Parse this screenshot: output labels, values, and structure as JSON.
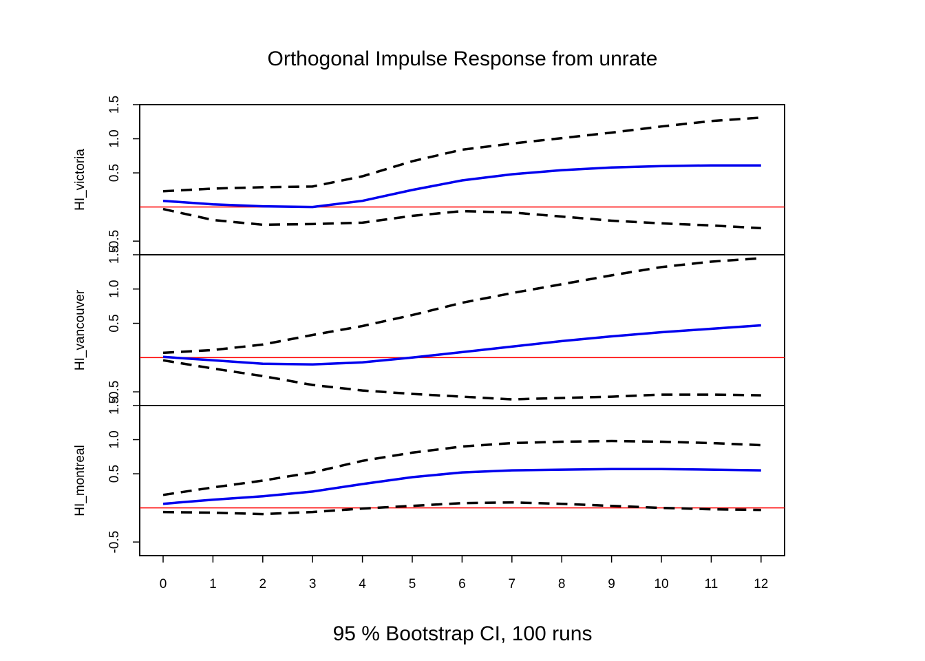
{
  "chart_data": {
    "type": "line",
    "title": "Orthogonal Impulse Response from unrate",
    "xlabel": "95 % Bootstrap CI,  100 runs",
    "x": [
      0,
      1,
      2,
      3,
      4,
      5,
      6,
      7,
      8,
      9,
      10,
      11,
      12
    ],
    "x_tick_labels": [
      "0",
      "1",
      "2",
      "3",
      "4",
      "5",
      "6",
      "7",
      "8",
      "9",
      "10",
      "11",
      "12"
    ],
    "xlim": [
      0,
      12
    ],
    "colors": {
      "response": "#0000ee",
      "ci": "#000000",
      "zero_line": "#ff0000"
    },
    "panels": [
      {
        "ylabel": "HI_victoria",
        "ylim": [
          -0.7,
          1.5
        ],
        "y_tick_labels": [
          "-0.5",
          "0.5",
          "1.0",
          "1.5"
        ],
        "y_tick_values": [
          -0.5,
          0.5,
          1.0,
          1.5
        ],
        "series": [
          {
            "role": "response",
            "values": [
              0.09,
              0.04,
              0.01,
              0.0,
              0.09,
              0.25,
              0.39,
              0.48,
              0.54,
              0.58,
              0.6,
              0.61,
              0.61
            ]
          },
          {
            "role": "upper",
            "values": [
              0.23,
              0.27,
              0.29,
              0.3,
              0.45,
              0.67,
              0.84,
              0.93,
              1.01,
              1.09,
              1.18,
              1.26,
              1.31
            ]
          },
          {
            "role": "lower",
            "values": [
              -0.03,
              -0.19,
              -0.26,
              -0.25,
              -0.23,
              -0.13,
              -0.06,
              -0.08,
              -0.14,
              -0.2,
              -0.24,
              -0.27,
              -0.31
            ]
          }
        ]
      },
      {
        "ylabel": "HI_vancouver",
        "ylim": [
          -0.7,
          1.5
        ],
        "y_tick_labels": [
          "-0.5",
          "0.5",
          "1.0",
          "1.5"
        ],
        "y_tick_values": [
          -0.5,
          0.5,
          1.0,
          1.5
        ],
        "series": [
          {
            "role": "response",
            "values": [
              0.01,
              -0.04,
              -0.09,
              -0.1,
              -0.07,
              0.0,
              0.08,
              0.16,
              0.24,
              0.31,
              0.37,
              0.42,
              0.47
            ]
          },
          {
            "role": "upper",
            "values": [
              0.07,
              0.11,
              0.19,
              0.33,
              0.46,
              0.62,
              0.8,
              0.94,
              1.07,
              1.2,
              1.32,
              1.4,
              1.45
            ]
          },
          {
            "role": "lower",
            "values": [
              -0.04,
              -0.16,
              -0.27,
              -0.4,
              -0.48,
              -0.53,
              -0.57,
              -0.61,
              -0.59,
              -0.57,
              -0.54,
              -0.54,
              -0.55
            ]
          }
        ]
      },
      {
        "ylabel": "HI_montreal",
        "ylim": [
          -0.7,
          1.5
        ],
        "y_tick_labels": [
          "-0.5",
          "0.5",
          "1.0",
          "1.5"
        ],
        "y_tick_values": [
          -0.5,
          0.5,
          1.0,
          1.5
        ],
        "series": [
          {
            "role": "response",
            "values": [
              0.06,
              0.12,
              0.17,
              0.24,
              0.35,
              0.45,
              0.52,
              0.55,
              0.56,
              0.57,
              0.57,
              0.56,
              0.55
            ]
          },
          {
            "role": "upper",
            "values": [
              0.19,
              0.3,
              0.4,
              0.52,
              0.69,
              0.81,
              0.9,
              0.95,
              0.97,
              0.98,
              0.97,
              0.95,
              0.92
            ]
          },
          {
            "role": "lower",
            "values": [
              -0.06,
              -0.07,
              -0.09,
              -0.06,
              -0.01,
              0.03,
              0.07,
              0.08,
              0.06,
              0.03,
              0.0,
              -0.02,
              -0.03
            ]
          }
        ]
      }
    ]
  }
}
